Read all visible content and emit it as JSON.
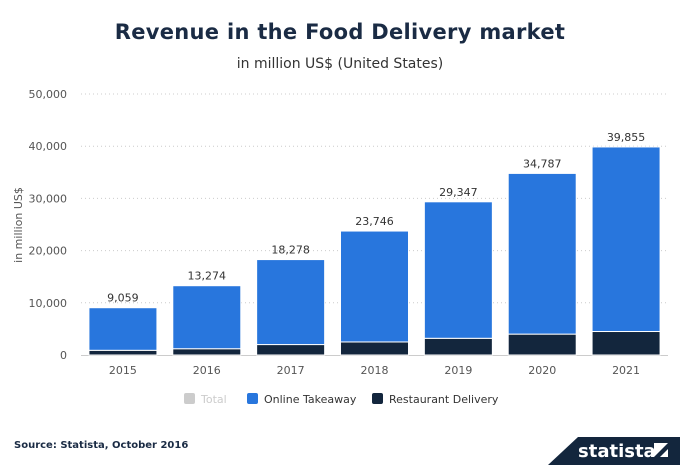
{
  "chart_data": {
    "type": "bar",
    "stacked": true,
    "title": "Revenue in the Food Delivery market",
    "subtitle": "in million US$ (United States)",
    "ylabel": "in million US$",
    "xlabel": "",
    "ylim": [
      0,
      50000
    ],
    "yticks": [
      "0",
      "10,000",
      "20,000",
      "30,000",
      "40,000",
      "50,000"
    ],
    "grid": true,
    "legend_position": "bottom",
    "categories": [
      "2015",
      "2016",
      "2017",
      "2018",
      "2019",
      "2020",
      "2021"
    ],
    "totals": [
      9059,
      13274,
      18278,
      23746,
      29347,
      34787,
      39855
    ],
    "total_labels": [
      "9,059",
      "13,274",
      "18,278",
      "23,746",
      "29,347",
      "34,787",
      "39,855"
    ],
    "series": [
      {
        "name": "Restaurant Delivery",
        "color": "#13263d",
        "values": [
          900,
          1200,
          2000,
          2500,
          3200,
          4000,
          4500
        ]
      },
      {
        "name": "Online Takeaway",
        "color": "#2876dd",
        "values": [
          8159,
          12074,
          16278,
          21246,
          26147,
          30787,
          35355
        ]
      }
    ],
    "legend": [
      {
        "name": "Total",
        "color": "#cccccc",
        "inactive": true
      },
      {
        "name": "Online Takeaway",
        "color": "#2876dd"
      },
      {
        "name": "Restaurant Delivery",
        "color": "#13263d"
      }
    ]
  },
  "footer": {
    "source": "Source: Statista, October 2016",
    "logo": "statista"
  }
}
